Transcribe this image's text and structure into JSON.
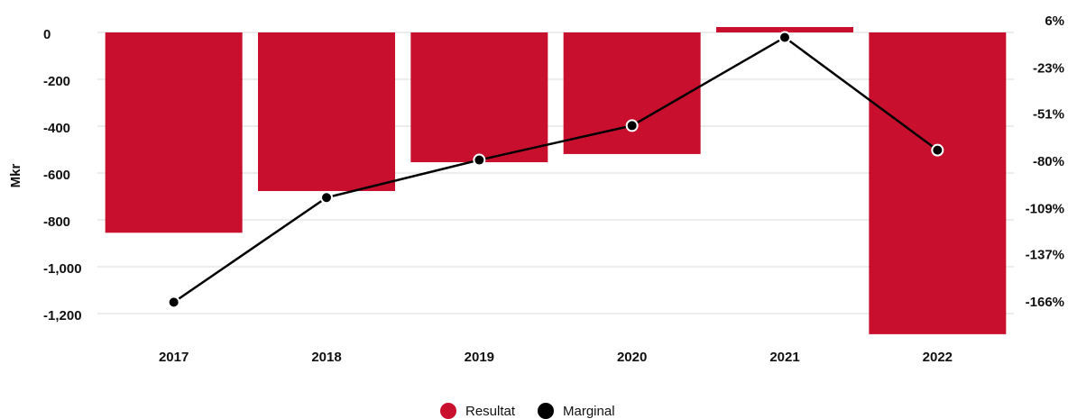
{
  "chart_data": {
    "type": "bar_line",
    "y_label": "Mkr",
    "categories": [
      "2017",
      "2018",
      "2019",
      "2020",
      "2021",
      "2022"
    ],
    "series": [
      {
        "name": "Resultat",
        "color": "#c8102e",
        "type": "bar",
        "values": [
          -855,
          -677,
          -554,
          -519,
          23,
          -1288
        ]
      },
      {
        "name": "Marginal",
        "color": "#000000",
        "type": "line",
        "axis": "y2",
        "values": [
          -159,
          -95,
          -72,
          -51,
          3,
          -66
        ]
      }
    ],
    "ylim": [
      -1300,
      25
    ],
    "yticks": [
      0,
      -200,
      -400,
      -600,
      -800,
      {
        "value": -1000,
        "label": "-1,000"
      },
      {
        "value": -1200,
        "label": "-1,200"
      }
    ],
    "y2lim": [
      -180.3,
      9.6
    ],
    "y2ticks": [
      {
        "value": 6,
        "label": "6%"
      },
      {
        "value": -23,
        "label": "-23%"
      },
      {
        "value": -51,
        "label": "-51%"
      },
      {
        "value": -80,
        "label": "-80%"
      },
      {
        "value": -109,
        "label": "-109%"
      },
      {
        "value": -137,
        "label": "-137%"
      },
      {
        "value": -166,
        "label": "-166%"
      }
    ],
    "grid": true,
    "legend": "bottom"
  }
}
